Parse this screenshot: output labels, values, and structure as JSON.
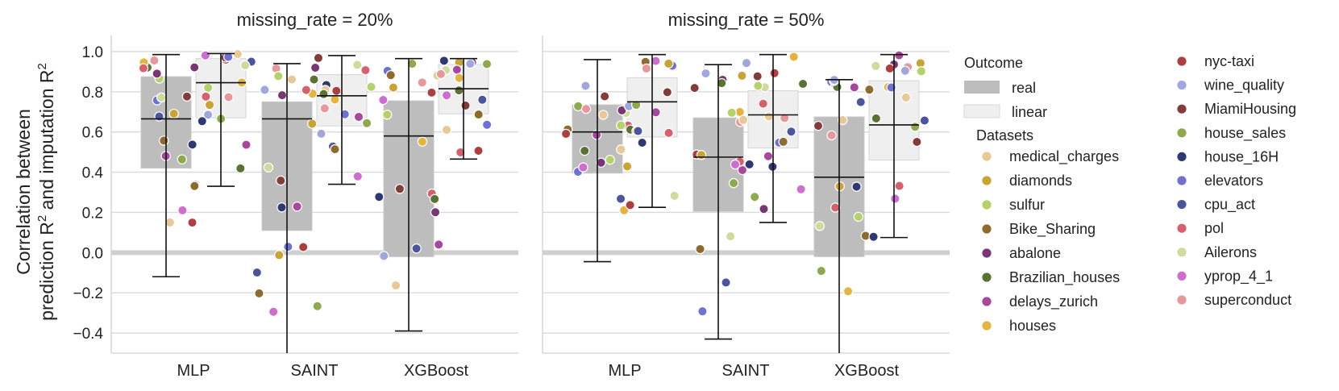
{
  "chart_data": {
    "type": "box",
    "ylabel_line1": "Correlation between",
    "ylabel_line2_parts": [
      "prediction R",
      "2",
      " and imputation R",
      "2"
    ],
    "ylim": [
      -0.5,
      1.08
    ],
    "yticks": [
      -0.4,
      -0.2,
      0.0,
      0.2,
      0.4,
      0.6,
      0.8,
      1.0
    ],
    "ytick_labels": [
      "−0.4",
      "−0.2",
      "0.0",
      "0.2",
      "0.4",
      "0.6",
      "0.8",
      "1.0"
    ],
    "categories": [
      "MLP",
      "SAINT",
      "XGBoost"
    ],
    "grid": true,
    "zero_line": 0.0,
    "outcome_colors": {
      "real": "#bdbdbd",
      "linear": "#efefef"
    },
    "legend": {
      "placement": "right",
      "outcome_title": "Outcome",
      "outcome_entries": [
        {
          "key": "real",
          "label": "real"
        },
        {
          "key": "linear",
          "label": "linear"
        }
      ],
      "datasets_title": "Datasets",
      "datasets": [
        {
          "name": "medical_charges",
          "color": "#e8c895"
        },
        {
          "name": "diamonds",
          "color": "#c9a334"
        },
        {
          "name": "sulfur",
          "color": "#b5d16a"
        },
        {
          "name": "Bike_Sharing",
          "color": "#8e6a2e"
        },
        {
          "name": "abalone",
          "color": "#7a3674"
        },
        {
          "name": "Brazilian_houses",
          "color": "#5a7334"
        },
        {
          "name": "delays_zurich",
          "color": "#a8479b"
        },
        {
          "name": "houses",
          "color": "#e7b33f"
        },
        {
          "name": "nyc-taxi",
          "color": "#ad3f41"
        },
        {
          "name": "wine_quality",
          "color": "#a1a6dd"
        },
        {
          "name": "MiamiHousing",
          "color": "#843c3b"
        },
        {
          "name": "house_sales",
          "color": "#8da94b"
        },
        {
          "name": "house_16H",
          "color": "#2f3873"
        },
        {
          "name": "elevators",
          "color": "#6e72d4"
        },
        {
          "name": "cpu_act",
          "color": "#4c549f"
        },
        {
          "name": "pol",
          "color": "#d6616c"
        },
        {
          "name": "Ailerons",
          "color": "#cedb9d"
        },
        {
          "name": "yprop_4_1",
          "color": "#ce6ccf"
        },
        {
          "name": "superconduct",
          "color": "#e8979a"
        }
      ]
    },
    "panels": [
      {
        "title": "missing_rate = 20%",
        "boxes": [
          {
            "category": "MLP",
            "outcome": "real",
            "q1": 0.42,
            "median": 0.665,
            "q3": 0.875,
            "whisker_low": -0.12,
            "whisker_high": 0.985
          },
          {
            "category": "MLP",
            "outcome": "linear",
            "q1": 0.67,
            "median": 0.845,
            "q3": 0.965,
            "whisker_low": 0.33,
            "whisker_high": 0.99
          },
          {
            "category": "SAINT",
            "outcome": "real",
            "q1": 0.11,
            "median": 0.665,
            "q3": 0.75,
            "whisker_low": -0.5,
            "whisker_high": 0.94
          },
          {
            "category": "SAINT",
            "outcome": "linear",
            "q1": 0.63,
            "median": 0.78,
            "q3": 0.885,
            "whisker_low": 0.34,
            "whisker_high": 0.98
          },
          {
            "category": "XGBoost",
            "outcome": "real",
            "q1": -0.02,
            "median": 0.58,
            "q3": 0.755,
            "whisker_low": -0.39,
            "whisker_high": 0.965
          },
          {
            "category": "XGBoost",
            "outcome": "linear",
            "q1": 0.69,
            "median": 0.815,
            "q3": 0.935,
            "whisker_low": 0.465,
            "whisker_high": 0.965
          }
        ]
      },
      {
        "title": "missing_rate = 50%",
        "boxes": [
          {
            "category": "MLP",
            "outcome": "real",
            "q1": 0.395,
            "median": 0.6,
            "q3": 0.735,
            "whisker_low": -0.045,
            "whisker_high": 0.96
          },
          {
            "category": "MLP",
            "outcome": "linear",
            "q1": 0.575,
            "median": 0.75,
            "q3": 0.87,
            "whisker_low": 0.225,
            "whisker_high": 0.985
          },
          {
            "category": "SAINT",
            "outcome": "real",
            "q1": 0.205,
            "median": 0.475,
            "q3": 0.67,
            "whisker_low": -0.43,
            "whisker_high": 0.935
          },
          {
            "category": "SAINT",
            "outcome": "linear",
            "q1": 0.52,
            "median": 0.685,
            "q3": 0.805,
            "whisker_low": 0.15,
            "whisker_high": 0.985
          },
          {
            "category": "XGBoost",
            "outcome": "real",
            "q1": -0.02,
            "median": 0.375,
            "q3": 0.675,
            "whisker_low": -0.5,
            "whisker_high": 0.86
          },
          {
            "category": "XGBoost",
            "outcome": "linear",
            "q1": 0.46,
            "median": 0.635,
            "q3": 0.855,
            "whisker_low": 0.075,
            "whisker_high": 0.985
          }
        ]
      }
    ]
  }
}
